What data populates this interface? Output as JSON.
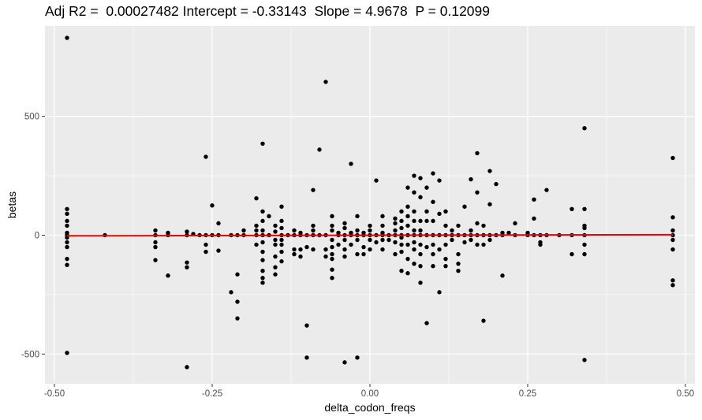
{
  "chart_data": {
    "type": "scatter",
    "title": "Adj R2 =  0.00027482 Intercept = -0.33143  Slope = 4.9678  P = 0.12099",
    "xlabel": "delta_codon_freqs",
    "ylabel": "betas",
    "xlim": [
      -0.515,
      0.515
    ],
    "ylim": [
      -625,
      880
    ],
    "x_ticks": [
      -0.5,
      -0.25,
      0.0,
      0.25,
      0.5
    ],
    "x_tick_labels": [
      "-0.50",
      "-0.25",
      "0.00",
      "0.25",
      "0.50"
    ],
    "y_ticks": [
      -500,
      0,
      500
    ],
    "y_tick_labels": [
      "-500",
      "0",
      "500"
    ],
    "grid": true,
    "panel_color": "#ebebeb",
    "point_color": "#000000",
    "fit_line": {
      "intercept": -0.33143,
      "slope": 4.9678,
      "color": "#ee0000",
      "x_range": [
        -0.48,
        0.48
      ]
    },
    "points": [
      [
        -0.48,
        830
      ],
      [
        -0.48,
        110
      ],
      [
        -0.48,
        90
      ],
      [
        -0.48,
        60
      ],
      [
        -0.48,
        40
      ],
      [
        -0.48,
        10
      ],
      [
        -0.48,
        0
      ],
      [
        -0.48,
        -10
      ],
      [
        -0.48,
        -30
      ],
      [
        -0.48,
        -50
      ],
      [
        -0.48,
        -100
      ],
      [
        -0.48,
        -125
      ],
      [
        -0.48,
        -495
      ],
      [
        -0.42,
        0
      ],
      [
        -0.34,
        20
      ],
      [
        -0.34,
        0
      ],
      [
        -0.34,
        -30
      ],
      [
        -0.34,
        -50
      ],
      [
        -0.34,
        -105
      ],
      [
        -0.32,
        10
      ],
      [
        -0.32,
        0
      ],
      [
        -0.32,
        -170
      ],
      [
        -0.29,
        15
      ],
      [
        -0.29,
        0
      ],
      [
        -0.29,
        -115
      ],
      [
        -0.29,
        -135
      ],
      [
        -0.29,
        -555
      ],
      [
        -0.28,
        5
      ],
      [
        -0.27,
        0
      ],
      [
        -0.26,
        330
      ],
      [
        -0.26,
        0
      ],
      [
        -0.26,
        -40
      ],
      [
        -0.26,
        -70
      ],
      [
        -0.25,
        125
      ],
      [
        -0.25,
        0
      ],
      [
        -0.24,
        50
      ],
      [
        -0.24,
        0
      ],
      [
        -0.24,
        -65
      ],
      [
        -0.22,
        0
      ],
      [
        -0.22,
        -240
      ],
      [
        -0.21,
        0
      ],
      [
        -0.21,
        -165
      ],
      [
        -0.21,
        -280
      ],
      [
        -0.21,
        -350
      ],
      [
        -0.2,
        20
      ],
      [
        -0.2,
        0
      ],
      [
        -0.18,
        155
      ],
      [
        -0.18,
        40
      ],
      [
        -0.18,
        20
      ],
      [
        -0.18,
        0
      ],
      [
        -0.18,
        -40
      ],
      [
        -0.17,
        385
      ],
      [
        -0.17,
        100
      ],
      [
        -0.17,
        60
      ],
      [
        -0.17,
        20
      ],
      [
        -0.17,
        0
      ],
      [
        -0.17,
        -30
      ],
      [
        -0.17,
        -70
      ],
      [
        -0.17,
        -105
      ],
      [
        -0.17,
        -150
      ],
      [
        -0.17,
        -180
      ],
      [
        -0.17,
        -200
      ],
      [
        -0.16,
        80
      ],
      [
        -0.16,
        0
      ],
      [
        -0.15,
        40
      ],
      [
        -0.15,
        15
      ],
      [
        -0.15,
        -20
      ],
      [
        -0.15,
        -40
      ],
      [
        -0.15,
        -90
      ],
      [
        -0.15,
        -135
      ],
      [
        -0.15,
        -165
      ],
      [
        -0.14,
        120
      ],
      [
        -0.14,
        60
      ],
      [
        -0.14,
        30
      ],
      [
        -0.14,
        0
      ],
      [
        -0.14,
        -20
      ],
      [
        -0.14,
        -40
      ],
      [
        -0.14,
        -70
      ],
      [
        -0.14,
        -110
      ],
      [
        -0.13,
        0
      ],
      [
        -0.12,
        20
      ],
      [
        -0.12,
        0
      ],
      [
        -0.12,
        -60
      ],
      [
        -0.12,
        -80
      ],
      [
        -0.11,
        10
      ],
      [
        -0.11,
        0
      ],
      [
        -0.11,
        -60
      ],
      [
        -0.11,
        -90
      ],
      [
        -0.1,
        0
      ],
      [
        -0.1,
        -50
      ],
      [
        -0.1,
        -380
      ],
      [
        -0.1,
        -515
      ],
      [
        -0.09,
        190
      ],
      [
        -0.09,
        40
      ],
      [
        -0.09,
        20
      ],
      [
        -0.09,
        0
      ],
      [
        -0.09,
        -60
      ],
      [
        -0.08,
        360
      ],
      [
        -0.08,
        0
      ],
      [
        -0.07,
        645
      ],
      [
        -0.07,
        0
      ],
      [
        -0.07,
        -60
      ],
      [
        -0.07,
        -90
      ],
      [
        -0.06,
        80
      ],
      [
        -0.06,
        40
      ],
      [
        -0.06,
        20
      ],
      [
        -0.06,
        -20
      ],
      [
        -0.06,
        -50
      ],
      [
        -0.06,
        -80
      ],
      [
        -0.06,
        -100
      ],
      [
        -0.06,
        -145
      ],
      [
        -0.06,
        -180
      ],
      [
        -0.05,
        10
      ],
      [
        -0.05,
        0
      ],
      [
        -0.05,
        -40
      ],
      [
        -0.04,
        50
      ],
      [
        -0.04,
        30
      ],
      [
        -0.04,
        0
      ],
      [
        -0.04,
        -20
      ],
      [
        -0.04,
        -60
      ],
      [
        -0.04,
        -90
      ],
      [
        -0.04,
        -535
      ],
      [
        -0.03,
        300
      ],
      [
        -0.03,
        10
      ],
      [
        -0.03,
        0
      ],
      [
        -0.03,
        -40
      ],
      [
        -0.02,
        80
      ],
      [
        -0.02,
        20
      ],
      [
        -0.02,
        0
      ],
      [
        -0.02,
        -20
      ],
      [
        -0.02,
        -80
      ],
      [
        -0.02,
        -515
      ],
      [
        -0.01,
        10
      ],
      [
        -0.01,
        0
      ],
      [
        -0.01,
        -50
      ],
      [
        -0.01,
        -80
      ],
      [
        0.0,
        40
      ],
      [
        0.0,
        20
      ],
      [
        0.0,
        0
      ],
      [
        0.0,
        -20
      ],
      [
        0.0,
        -60
      ],
      [
        0.01,
        230
      ],
      [
        0.01,
        0
      ],
      [
        0.01,
        -30
      ],
      [
        0.02,
        80
      ],
      [
        0.02,
        40
      ],
      [
        0.02,
        10
      ],
      [
        0.02,
        0
      ],
      [
        0.02,
        -20
      ],
      [
        0.02,
        -60
      ],
      [
        0.03,
        0
      ],
      [
        0.03,
        -20
      ],
      [
        0.04,
        70
      ],
      [
        0.04,
        50
      ],
      [
        0.04,
        20
      ],
      [
        0.04,
        0
      ],
      [
        0.04,
        -30
      ],
      [
        0.04,
        -80
      ],
      [
        0.05,
        100
      ],
      [
        0.05,
        60
      ],
      [
        0.05,
        30
      ],
      [
        0.05,
        0
      ],
      [
        0.05,
        -10
      ],
      [
        0.05,
        -40
      ],
      [
        0.05,
        -70
      ],
      [
        0.05,
        -150
      ],
      [
        0.06,
        200
      ],
      [
        0.06,
        120
      ],
      [
        0.06,
        80
      ],
      [
        0.06,
        40
      ],
      [
        0.06,
        0
      ],
      [
        0.06,
        -40
      ],
      [
        0.06,
        -100
      ],
      [
        0.06,
        -160
      ],
      [
        0.07,
        250
      ],
      [
        0.07,
        180
      ],
      [
        0.07,
        100
      ],
      [
        0.07,
        60
      ],
      [
        0.07,
        20
      ],
      [
        0.07,
        0
      ],
      [
        0.07,
        -30
      ],
      [
        0.07,
        -60
      ],
      [
        0.07,
        -120
      ],
      [
        0.08,
        240
      ],
      [
        0.08,
        160
      ],
      [
        0.08,
        60
      ],
      [
        0.08,
        20
      ],
      [
        0.08,
        0
      ],
      [
        0.08,
        -40
      ],
      [
        0.08,
        -80
      ],
      [
        0.08,
        -130
      ],
      [
        0.08,
        -200
      ],
      [
        0.09,
        200
      ],
      [
        0.09,
        100
      ],
      [
        0.09,
        60
      ],
      [
        0.09,
        0
      ],
      [
        0.09,
        -50
      ],
      [
        0.09,
        -370
      ],
      [
        0.1,
        260
      ],
      [
        0.1,
        140
      ],
      [
        0.1,
        60
      ],
      [
        0.1,
        0
      ],
      [
        0.1,
        -40
      ],
      [
        0.1,
        -80
      ],
      [
        0.1,
        -130
      ],
      [
        0.11,
        230
      ],
      [
        0.11,
        90
      ],
      [
        0.11,
        0
      ],
      [
        0.11,
        -60
      ],
      [
        0.11,
        -240
      ],
      [
        0.12,
        100
      ],
      [
        0.12,
        40
      ],
      [
        0.12,
        0
      ],
      [
        0.12,
        -40
      ],
      [
        0.12,
        -100
      ],
      [
        0.12,
        -130
      ],
      [
        0.13,
        20
      ],
      [
        0.13,
        0
      ],
      [
        0.13,
        -20
      ],
      [
        0.14,
        40
      ],
      [
        0.14,
        0
      ],
      [
        0.14,
        -80
      ],
      [
        0.14,
        -120
      ],
      [
        0.14,
        -150
      ],
      [
        0.15,
        120
      ],
      [
        0.15,
        0
      ],
      [
        0.15,
        -30
      ],
      [
        0.16,
        235
      ],
      [
        0.16,
        20
      ],
      [
        0.16,
        0
      ],
      [
        0.16,
        -20
      ],
      [
        0.17,
        345
      ],
      [
        0.17,
        180
      ],
      [
        0.17,
        50
      ],
      [
        0.17,
        0
      ],
      [
        0.17,
        -40
      ],
      [
        0.18,
        40
      ],
      [
        0.18,
        0
      ],
      [
        0.18,
        -40
      ],
      [
        0.18,
        -360
      ],
      [
        0.19,
        270
      ],
      [
        0.19,
        130
      ],
      [
        0.19,
        0
      ],
      [
        0.19,
        -20
      ],
      [
        0.2,
        215
      ],
      [
        0.2,
        0
      ],
      [
        0.21,
        10
      ],
      [
        0.21,
        0
      ],
      [
        0.21,
        -170
      ],
      [
        0.22,
        10
      ],
      [
        0.23,
        50
      ],
      [
        0.23,
        0
      ],
      [
        0.25,
        10
      ],
      [
        0.25,
        0
      ],
      [
        0.26,
        150
      ],
      [
        0.26,
        70
      ],
      [
        0.26,
        0
      ],
      [
        0.27,
        0
      ],
      [
        0.27,
        -30
      ],
      [
        0.27,
        -40
      ],
      [
        0.28,
        190
      ],
      [
        0.28,
        0
      ],
      [
        0.3,
        0
      ],
      [
        0.32,
        110
      ],
      [
        0.32,
        0
      ],
      [
        0.32,
        -80
      ],
      [
        0.34,
        450
      ],
      [
        0.34,
        110
      ],
      [
        0.34,
        40
      ],
      [
        0.34,
        30
      ],
      [
        0.34,
        0
      ],
      [
        0.34,
        -40
      ],
      [
        0.34,
        -80
      ],
      [
        0.34,
        -525
      ],
      [
        0.48,
        325
      ],
      [
        0.48,
        75
      ],
      [
        0.48,
        20
      ],
      [
        0.48,
        0
      ],
      [
        0.48,
        -20
      ],
      [
        0.48,
        -60
      ],
      [
        0.48,
        -190
      ],
      [
        0.48,
        -210
      ]
    ]
  }
}
